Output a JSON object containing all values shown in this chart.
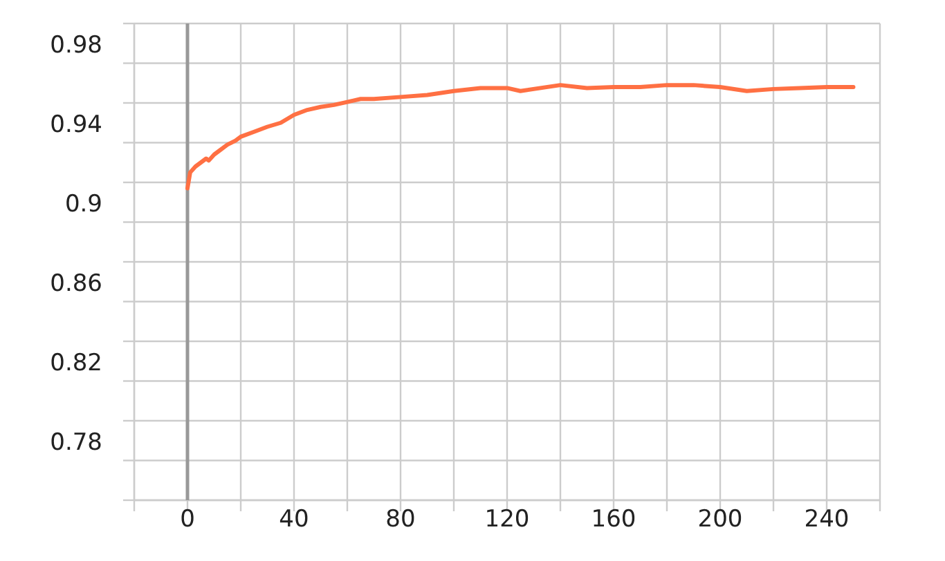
{
  "chart_data": {
    "type": "line",
    "x": [
      0,
      1,
      3,
      5,
      7,
      8,
      10,
      12,
      15,
      18,
      20,
      25,
      30,
      35,
      40,
      45,
      50,
      55,
      60,
      65,
      70,
      80,
      90,
      100,
      110,
      120,
      125,
      140,
      150,
      160,
      170,
      180,
      190,
      200,
      210,
      220,
      230,
      240,
      250
    ],
    "series": [
      {
        "color": "#ff7043",
        "values": [
          0.917,
          0.925,
          0.928,
          0.93,
          0.932,
          0.931,
          0.934,
          0.936,
          0.939,
          0.941,
          0.943,
          0.9455,
          0.948,
          0.95,
          0.954,
          0.9565,
          0.958,
          0.959,
          0.9605,
          0.962,
          0.962,
          0.963,
          0.964,
          0.966,
          0.9675,
          0.9675,
          0.966,
          0.969,
          0.9675,
          0.968,
          0.968,
          0.969,
          0.969,
          0.968,
          0.966,
          0.967,
          0.9675,
          0.968,
          0.968
        ]
      }
    ],
    "xlim": [
      -20,
      260
    ],
    "ylim": [
      0.76,
      1.0
    ],
    "xticks": [
      {
        "value": -20,
        "label": null
      },
      0,
      {
        "value": 20,
        "label": null
      },
      40,
      {
        "value": 60,
        "label": null
      },
      80,
      {
        "value": 100,
        "label": null
      },
      120,
      {
        "value": 140,
        "label": null
      },
      160,
      {
        "value": 180,
        "label": null
      },
      200,
      {
        "value": 220,
        "label": null
      },
      240,
      {
        "value": 260,
        "label": null
      }
    ],
    "yticks": [
      {
        "value": 0.76,
        "label": null
      },
      0.78,
      {
        "value": 0.8,
        "label": null
      },
      0.82,
      {
        "value": 0.84,
        "label": null
      },
      0.86,
      {
        "value": 0.88,
        "label": null
      },
      {
        "value": 0.9,
        "label": "0.9"
      },
      {
        "value": 0.92,
        "label": null
      },
      0.94,
      {
        "value": 0.96,
        "label": null
      },
      0.98,
      {
        "value": 1.0,
        "label": null
      }
    ],
    "grid": true,
    "marker": "none",
    "line_style": "solid",
    "ref_lines": [
      {
        "axis": "x",
        "value": 0,
        "color": "#999999"
      }
    ]
  }
}
